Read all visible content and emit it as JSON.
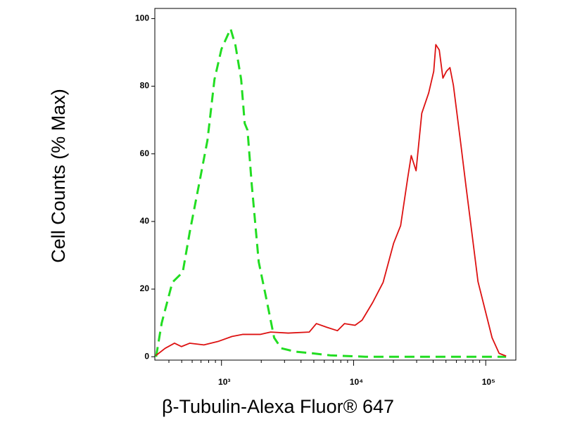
{
  "chart_data": {
    "type": "line",
    "xlabel": "β-Tubulin-Alexa Fluor® 647",
    "ylabel": "Cell Counts (% Max)",
    "xscale": "log",
    "xlim": [
      313,
      169000
    ],
    "ylim": [
      -1,
      103
    ],
    "xticks": [
      {
        "value": 1000,
        "label": "10³"
      },
      {
        "value": 10000,
        "label": "10⁴"
      },
      {
        "value": 100000,
        "label": "10⁵"
      }
    ],
    "x_minor_ticks": [
      400,
      500,
      600,
      700,
      800,
      900,
      2000,
      3000,
      4000,
      5000,
      6000,
      7000,
      8000,
      9000,
      20000,
      30000,
      40000,
      50000,
      60000,
      70000,
      80000,
      90000
    ],
    "yticks": [
      0,
      20,
      40,
      60,
      80,
      100
    ],
    "series": [
      {
        "color": "#22dd22",
        "dash": true,
        "x": [
          320,
          353,
          425,
          509,
          576,
          692,
          783,
          885,
          1000,
          1172,
          1277,
          1409,
          1499,
          1574,
          1694,
          1914,
          2163,
          2505,
          2833,
          3620,
          4914,
          6668,
          12300,
          41900,
          142600
        ],
        "values": [
          0,
          10,
          22,
          25,
          37,
          53,
          64,
          82,
          91,
          97,
          92,
          82,
          69,
          67,
          51,
          28,
          18,
          5.6,
          2.5,
          1.5,
          1,
          0.4,
          0,
          0,
          0
        ]
      },
      {
        "color": "#dd1111",
        "dash": false,
        "x": [
          320,
          375,
          441,
          498,
          576,
          736,
          940,
          1201,
          1444,
          1963,
          2357,
          3200,
          4620,
          5226,
          6280,
          7550,
          8530,
          10250,
          11590,
          13930,
          16730,
          20100,
          22700,
          25700,
          27300,
          29700,
          32800,
          37000,
          40400,
          41900,
          44500,
          47400,
          50400,
          53600,
          56900,
          64400,
          71000,
          77300,
          87400,
          98800,
          111700,
          126300,
          142600
        ],
        "values": [
          0.4,
          2.5,
          4,
          3,
          4,
          3.5,
          4.5,
          6,
          6.6,
          6.6,
          7.3,
          7,
          7.3,
          9.8,
          8.7,
          7.7,
          9.8,
          9.3,
          10.8,
          16,
          22,
          33.6,
          38.8,
          53,
          59.5,
          55,
          72,
          78,
          84.4,
          92.3,
          90.7,
          82.4,
          84.4,
          85.5,
          80.3,
          63.7,
          50.2,
          38.8,
          22.2,
          13.9,
          5.6,
          1,
          0.2
        ]
      }
    ]
  }
}
